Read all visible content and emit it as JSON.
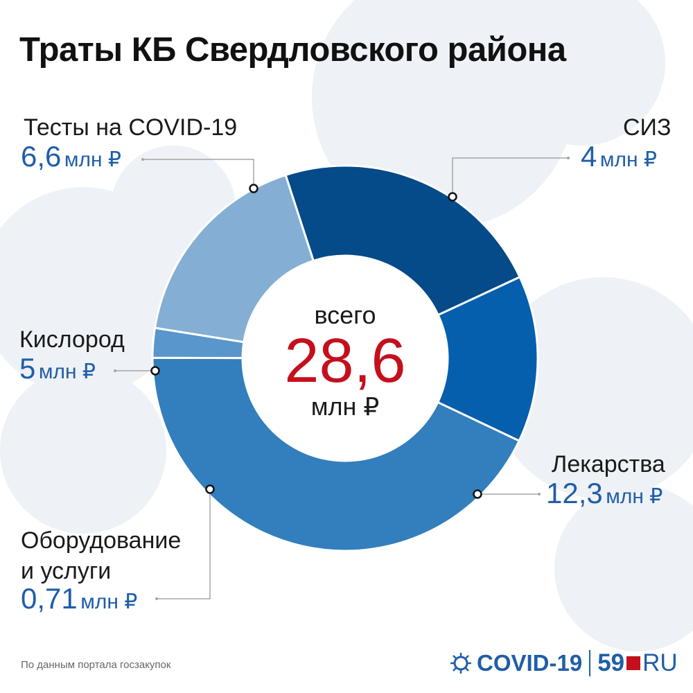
{
  "title": "Траты КБ Свердловского района",
  "center": {
    "top": "всего",
    "value": "28,6",
    "unit": "млн ₽"
  },
  "labels": [
    {
      "category": "Тесты на COVID-19",
      "value": "6,6",
      "unit": "млн ₽"
    },
    {
      "category": "СИЗ",
      "value": "4",
      "unit": "млн ₽"
    },
    {
      "category": "Лекарства",
      "value": "12,3",
      "unit": "млн ₽"
    },
    {
      "category": "Оборудование\nи услуги",
      "value": "0,71",
      "unit": "млн ₽"
    },
    {
      "category": "Кислород",
      "value": "5",
      "unit": "млн ₽"
    }
  ],
  "source": "По данным портала госзакупок",
  "brand": {
    "name": "COVID-19",
    "number": "59",
    "suffix": "RU"
  },
  "colors": {
    "accent": "#1f5ea8",
    "total": "#c4101d"
  },
  "chart_data": {
    "type": "pie",
    "style": "donut",
    "unit": "млн ₽",
    "total": 28.6,
    "categories": [
      "Тесты на COVID-19",
      "СИЗ",
      "Лекарства",
      "Оборудование и услуги",
      "Кислород"
    ],
    "values": [
      6.6,
      4,
      12.3,
      0.71,
      5
    ],
    "colors": [
      "#054a89",
      "#055fac",
      "#337ebc",
      "#5996cb",
      "#85aed4"
    ]
  }
}
